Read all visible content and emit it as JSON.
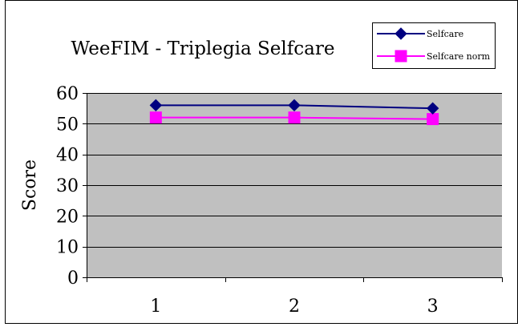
{
  "chart_data": {
    "type": "line",
    "title": "WeeFIM - Triplegia Selfcare",
    "xlabel": "",
    "ylabel": "Score",
    "categories": [
      "1",
      "2",
      "3"
    ],
    "ylim": [
      0,
      60
    ],
    "yticks": [
      "0",
      "10",
      "20",
      "30",
      "40",
      "50",
      "60"
    ],
    "grid": true,
    "legend_position": "top-right",
    "plot_background": "#c0c0c0",
    "series": [
      {
        "name": "Selfcare",
        "values": [
          56,
          56,
          55
        ],
        "color": "#000080",
        "marker": "diamond"
      },
      {
        "name": "Selfcare norm",
        "values": [
          52,
          52,
          51.5
        ],
        "color": "#ff00ff",
        "marker": "square"
      }
    ]
  }
}
